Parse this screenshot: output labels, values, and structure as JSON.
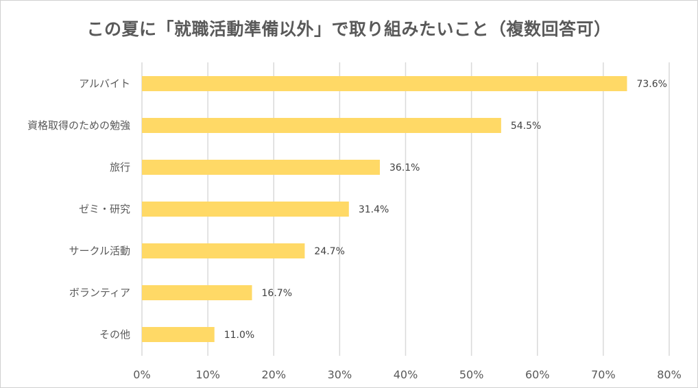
{
  "chart_data": {
    "type": "bar",
    "orientation": "horizontal",
    "title": "この夏に「就職活動準備以外」で取り組みたいこと（複数回答可）",
    "categories": [
      "アルバイト",
      "資格取得のための勉強",
      "旅行",
      "ゼミ・研究",
      "サークル活動",
      "ボランティア",
      "その他"
    ],
    "values": [
      73.6,
      54.5,
      36.1,
      31.4,
      24.7,
      16.7,
      11.0
    ],
    "value_labels": [
      "73.6%",
      "54.5%",
      "36.1%",
      "31.4%",
      "24.7%",
      "16.7%",
      "11.0%"
    ],
    "xlim": [
      0,
      80
    ],
    "ticks": [
      0,
      10,
      20,
      30,
      40,
      50,
      60,
      70,
      80
    ],
    "tick_labels": [
      "0%",
      "10%",
      "20%",
      "30%",
      "40%",
      "50%",
      "60%",
      "70%",
      "80%"
    ],
    "grid": true,
    "legend": "none",
    "bar_color": "#FFD966",
    "grid_color": "#D9D9D9",
    "text_color": "#595959"
  }
}
